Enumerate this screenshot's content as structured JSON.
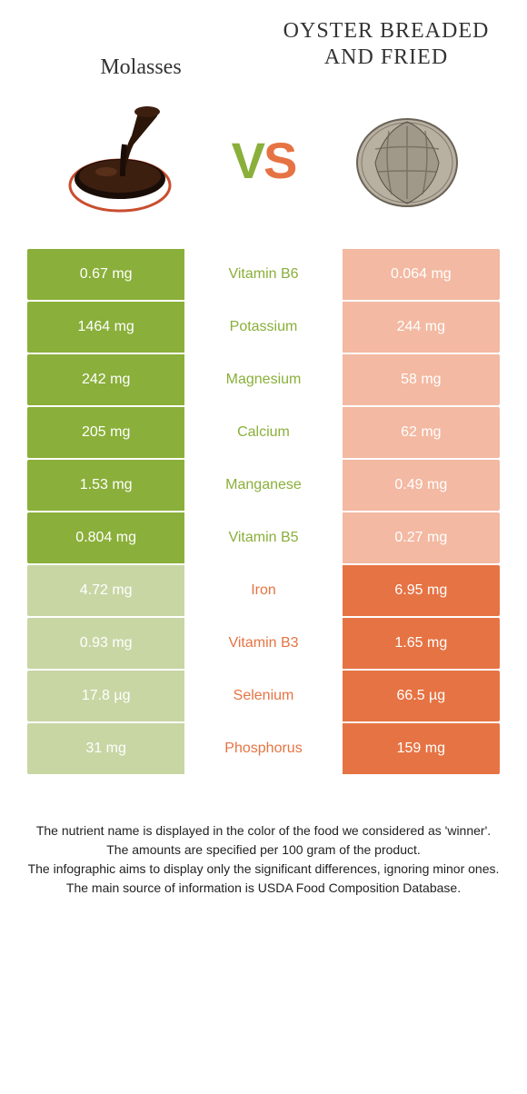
{
  "header": {
    "left_title": "Molasses",
    "right_title": "OYSTER BREADED AND FRIED",
    "vs_v": "V",
    "vs_s": "S"
  },
  "colors": {
    "green": "#8aaf3a",
    "green_dim": "#c8d6a4",
    "orange": "#e67343",
    "orange_dim": "#f3b9a2",
    "bg": "#ffffff"
  },
  "rows": [
    {
      "nutrient": "Vitamin B6",
      "left": "0.67 mg",
      "right": "0.064 mg",
      "winner": "left"
    },
    {
      "nutrient": "Potassium",
      "left": "1464 mg",
      "right": "244 mg",
      "winner": "left"
    },
    {
      "nutrient": "Magnesium",
      "left": "242 mg",
      "right": "58 mg",
      "winner": "left"
    },
    {
      "nutrient": "Calcium",
      "left": "205 mg",
      "right": "62 mg",
      "winner": "left"
    },
    {
      "nutrient": "Manganese",
      "left": "1.53 mg",
      "right": "0.49 mg",
      "winner": "left"
    },
    {
      "nutrient": "Vitamin B5",
      "left": "0.804 mg",
      "right": "0.27 mg",
      "winner": "left"
    },
    {
      "nutrient": "Iron",
      "left": "4.72 mg",
      "right": "6.95 mg",
      "winner": "right"
    },
    {
      "nutrient": "Vitamin B3",
      "left": "0.93 mg",
      "right": "1.65 mg",
      "winner": "right"
    },
    {
      "nutrient": "Selenium",
      "left": "17.8 µg",
      "right": "66.5 µg",
      "winner": "right"
    },
    {
      "nutrient": "Phosphorus",
      "left": "31 mg",
      "right": "159 mg",
      "winner": "right"
    }
  ],
  "footer": {
    "line1": "The nutrient name is displayed in the color of the food we considered as 'winner'.",
    "line2": "The amounts are specified per 100 gram of the product.",
    "line3": "The infographic aims to display only the significant differences, ignoring minor ones.",
    "line4": "The main source of information is USDA Food Composition Database."
  }
}
